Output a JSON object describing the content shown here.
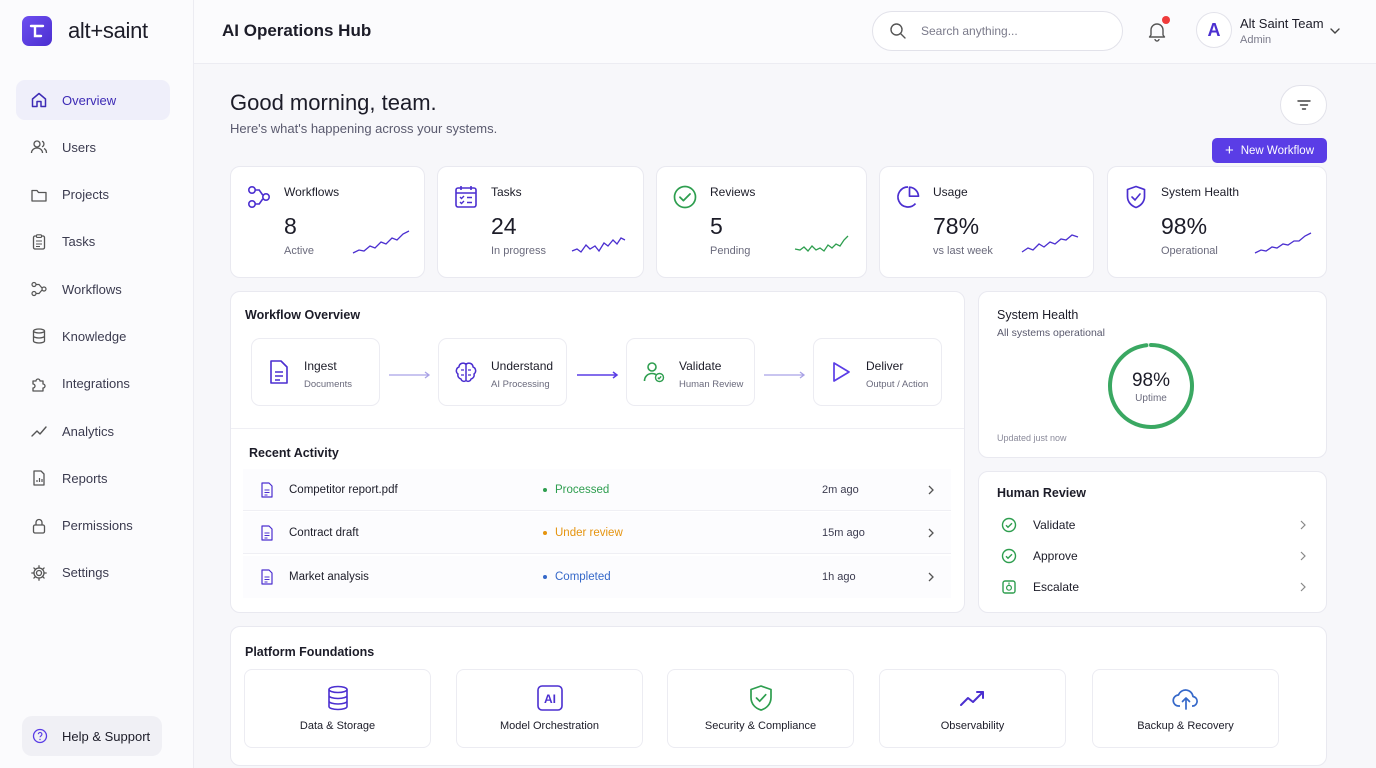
{
  "brand": {
    "name": "alt+saint"
  },
  "sidebar": {
    "items": [
      {
        "label": "Overview",
        "icon": "home-icon"
      },
      {
        "label": "Users",
        "icon": "users-icon"
      },
      {
        "label": "Projects",
        "icon": "folder-icon"
      },
      {
        "label": "Tasks",
        "icon": "clipboard-icon"
      },
      {
        "label": "Workflows",
        "icon": "workflow-icon"
      },
      {
        "label": "Knowledge",
        "icon": "database-icon"
      },
      {
        "label": "Integrations",
        "icon": "puzzle-icon"
      },
      {
        "label": "Analytics",
        "icon": "trend-icon"
      },
      {
        "label": "Reports",
        "icon": "report-icon"
      },
      {
        "label": "Permissions",
        "icon": "lock-icon"
      },
      {
        "label": "Settings",
        "icon": "gear-icon"
      }
    ],
    "active": "Overview",
    "help_label": "Help & Support"
  },
  "header": {
    "title": "AI Operations Hub",
    "search_placeholder": "Search anything...",
    "user": {
      "initial": "A",
      "name": "Alt Saint Team",
      "role": "Admin"
    }
  },
  "greeting": {
    "title": "Good morning, team.",
    "subtitle": "Here's what's happening across your systems.",
    "new_workflow_label": "New Workflow"
  },
  "stats": [
    {
      "label": "Workflows",
      "value": "8",
      "sub": "Active",
      "icon": "workflow-icon"
    },
    {
      "label": "Tasks",
      "value": "24",
      "sub": "In progress",
      "icon": "checklist-icon"
    },
    {
      "label": "Reviews",
      "value": "5",
      "sub": "Pending",
      "icon": "check-circle-icon"
    },
    {
      "label": "Usage",
      "value": "78%",
      "sub": "vs last week",
      "icon": "pie-icon"
    },
    {
      "label": "System Health",
      "value": "98%",
      "sub": "Operational",
      "icon": "shield-icon"
    }
  ],
  "workflow_overview": {
    "title": "Workflow Overview",
    "steps": [
      {
        "name": "Ingest",
        "desc": "Documents",
        "icon": "document-icon"
      },
      {
        "name": "Understand",
        "desc": "AI Processing",
        "icon": "brain-icon"
      },
      {
        "name": "Validate",
        "desc": "Human Review",
        "icon": "user-check-icon"
      },
      {
        "name": "Deliver",
        "desc": "Output / Action",
        "icon": "play-icon"
      }
    ]
  },
  "recent_activity": {
    "title": "Recent Activity",
    "rows": [
      {
        "name": "Competitor report.pdf",
        "status": "Processed",
        "status_color": "#2e9e4f",
        "time": "2m ago"
      },
      {
        "name": "Contract draft",
        "status": "Under review",
        "status_color": "#e5940f",
        "time": "15m ago"
      },
      {
        "name": "Market analysis",
        "status": "Completed",
        "status_color": "#3568c9",
        "time": "1h ago"
      }
    ]
  },
  "system_health": {
    "title": "System Health",
    "subtitle": "All systems operational",
    "value": "98%",
    "value_label": "Uptime",
    "percent": 98,
    "updated": "Updated just now",
    "color": "#3aa862"
  },
  "human_review": {
    "title": "Human Review",
    "items": [
      {
        "label": "Validate",
        "icon": "check-circle-icon"
      },
      {
        "label": "Approve",
        "icon": "check-circle-icon"
      },
      {
        "label": "Escalate",
        "icon": "alert-box-icon"
      }
    ]
  },
  "platform": {
    "title": "Platform Foundations",
    "items": [
      {
        "label": "Data & Storage",
        "icon": "database-icon"
      },
      {
        "label": "Model Orchestration",
        "icon": "ai-chip-icon",
        "badge": "AI"
      },
      {
        "label": "Security & Compliance",
        "icon": "shield-check-icon"
      },
      {
        "label": "Observability",
        "icon": "trend-icon"
      },
      {
        "label": "Backup & Recovery",
        "icon": "cloud-upload-icon"
      }
    ]
  },
  "colors": {
    "accent": "#5a3de6",
    "accent_dark": "#3d2bb5",
    "success": "#2e9e4f"
  }
}
